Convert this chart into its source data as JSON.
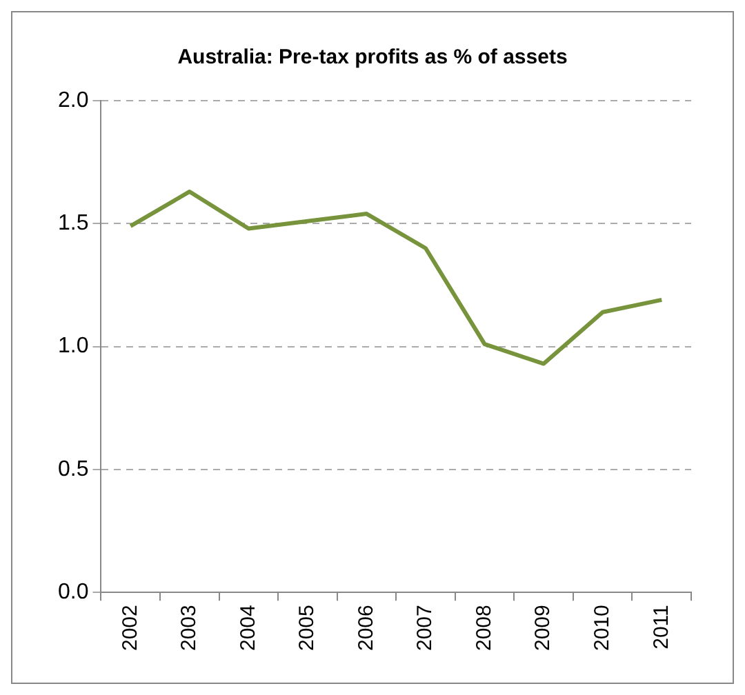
{
  "chart_data": {
    "type": "line",
    "title": "Australia: Pre-tax profits as % of assets",
    "categories": [
      "2002",
      "2003",
      "2004",
      "2005",
      "2006",
      "2007",
      "2008",
      "2009",
      "2010",
      "2011"
    ],
    "series": [
      {
        "color": "#77933c",
        "values": [
          1.49,
          1.63,
          1.48,
          1.51,
          1.54,
          1.4,
          1.01,
          0.93,
          1.14,
          1.19
        ]
      }
    ],
    "ylim": [
      0,
      2
    ],
    "yticks": [
      {
        "value": 0,
        "label": "0.0"
      },
      {
        "value": 0.5,
        "label": "0.5"
      },
      {
        "value": 1,
        "label": "1.0"
      },
      {
        "value": 1.5,
        "label": "1.5"
      },
      {
        "value": 2,
        "label": "2.0"
      }
    ],
    "grid": "y",
    "legend": false,
    "marker": "none",
    "line_style": "solid"
  }
}
